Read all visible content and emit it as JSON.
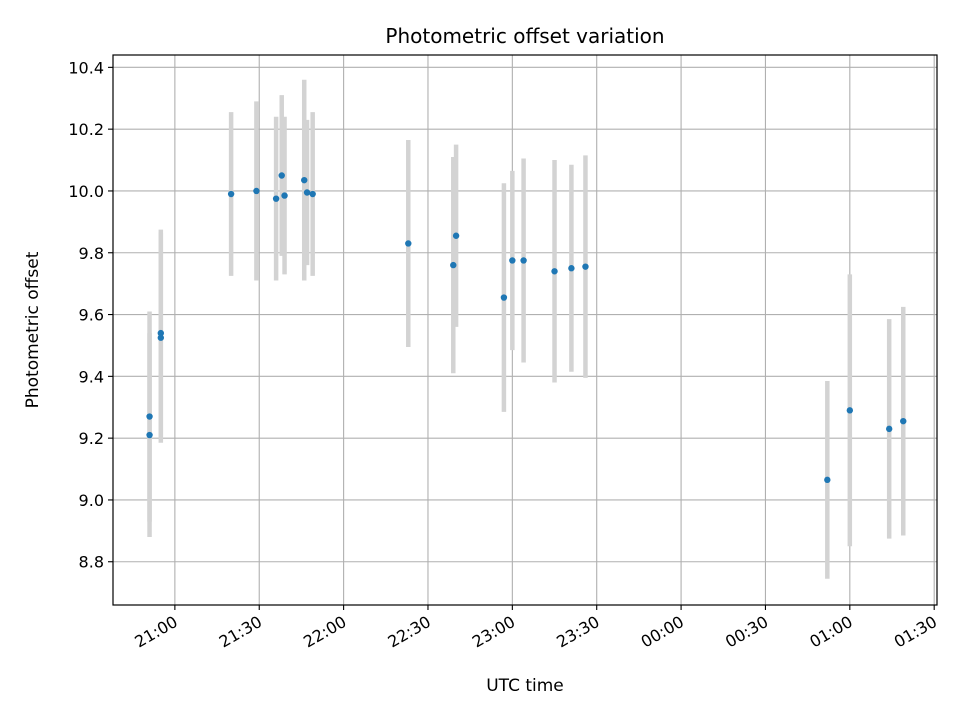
{
  "chart_data": {
    "type": "scatter",
    "title": "Photometric offset variation",
    "xlabel": "UTC time",
    "ylabel": "Photometric offset",
    "x_ticks": [
      "21:00",
      "21:30",
      "22:00",
      "22:30",
      "23:00",
      "23:30",
      "00:00",
      "00:30",
      "01:00",
      "01:30"
    ],
    "y_ticks": [
      "8.8",
      "9.0",
      "9.2",
      "9.4",
      "9.6",
      "9.8",
      "10.0",
      "10.2",
      "10.4"
    ],
    "xlim": [
      "20:38",
      "01:31"
    ],
    "ylim": [
      8.66,
      10.44
    ],
    "grid": true,
    "colors": {
      "point": "#1f77b4",
      "errorbar": "#d3d3d3",
      "grid": "#b0b0b0"
    },
    "series": [
      {
        "points": [
          {
            "x": "20:51",
            "y": 9.21,
            "err": 0.33
          },
          {
            "x": "20:51",
            "y": 9.27,
            "err": 0.34
          },
          {
            "x": "20:55",
            "y": 9.525,
            "err": 0.34
          },
          {
            "x": "20:55",
            "y": 9.54,
            "err": 0.335
          },
          {
            "x": "21:20",
            "y": 9.99,
            "err": 0.265
          },
          {
            "x": "21:29",
            "y": 10.0,
            "err": 0.29
          },
          {
            "x": "21:36",
            "y": 9.975,
            "err": 0.265
          },
          {
            "x": "21:38",
            "y": 10.05,
            "err": 0.26
          },
          {
            "x": "21:39",
            "y": 9.985,
            "err": 0.255
          },
          {
            "x": "21:46",
            "y": 10.035,
            "err": 0.325
          },
          {
            "x": "21:47",
            "y": 9.995,
            "err": 0.235
          },
          {
            "x": "21:49",
            "y": 9.99,
            "err": 0.265
          },
          {
            "x": "22:23",
            "y": 9.83,
            "err": 0.335
          },
          {
            "x": "22:39",
            "y": 9.76,
            "err": 0.35
          },
          {
            "x": "22:40",
            "y": 9.855,
            "err": 0.295
          },
          {
            "x": "22:57",
            "y": 9.655,
            "err": 0.37
          },
          {
            "x": "23:00",
            "y": 9.775,
            "err": 0.29
          },
          {
            "x": "23:04",
            "y": 9.775,
            "err": 0.33
          },
          {
            "x": "23:15",
            "y": 9.74,
            "err": 0.36
          },
          {
            "x": "23:21",
            "y": 9.75,
            "err": 0.335
          },
          {
            "x": "23:26",
            "y": 9.755,
            "err": 0.36
          },
          {
            "x": "00:52",
            "y": 9.065,
            "err": 0.32
          },
          {
            "x": "01:00",
            "y": 9.29,
            "err": 0.44
          },
          {
            "x": "01:14",
            "y": 9.23,
            "err": 0.355
          },
          {
            "x": "01:19",
            "y": 9.255,
            "err": 0.37
          }
        ]
      }
    ]
  }
}
